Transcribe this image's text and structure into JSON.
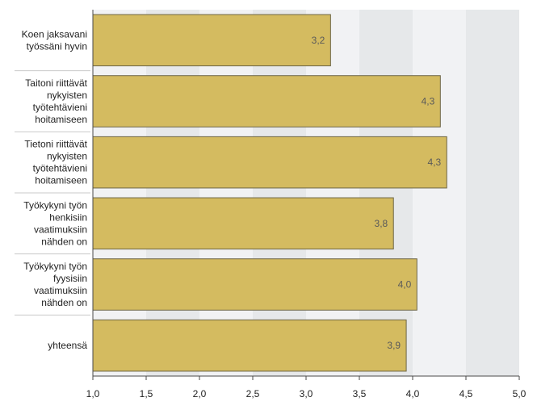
{
  "chart_data": {
    "type": "bar",
    "orientation": "horizontal",
    "categories": [
      [
        "Koen jaksavani",
        "työssäni hyvin"
      ],
      [
        "Taitoni riittävät",
        "nykyisten",
        "työtehtävieni",
        "hoitamiseen"
      ],
      [
        "Tietoni riittävät",
        "nykyisten",
        "työtehtävieni",
        "hoitamiseen"
      ],
      [
        "Työkykyni työn",
        "henkisiin",
        "vaatimuksiin",
        "nähden on"
      ],
      [
        "Työkykyni työn",
        "fyysisiin",
        "vaatimuksiin",
        "nähden on"
      ],
      [
        "yhteensä"
      ]
    ],
    "values": [
      3.23,
      4.26,
      4.32,
      3.82,
      4.04,
      3.94
    ],
    "value_labels": [
      "3,2",
      "4,3",
      "4,3",
      "3,8",
      "4,0",
      "3,9"
    ],
    "x_ticks": [
      1.0,
      1.5,
      2.0,
      2.5,
      3.0,
      3.5,
      4.0,
      4.5,
      5.0
    ],
    "x_tick_labels": [
      "1,0",
      "1,5",
      "2,0",
      "2,5",
      "3,0",
      "3,5",
      "4,0",
      "4,5",
      "5,0"
    ],
    "xlim": [
      1.0,
      5.0
    ],
    "title": "",
    "xlabel": "",
    "ylabel": "",
    "legend": "none",
    "colors": {
      "bar_fill": "#d4bb60",
      "bar_stroke": "#6e6645",
      "band_light": "#f1f2f4",
      "band_dark": "#e6e8ea",
      "axis": "#4a4a4a"
    }
  }
}
